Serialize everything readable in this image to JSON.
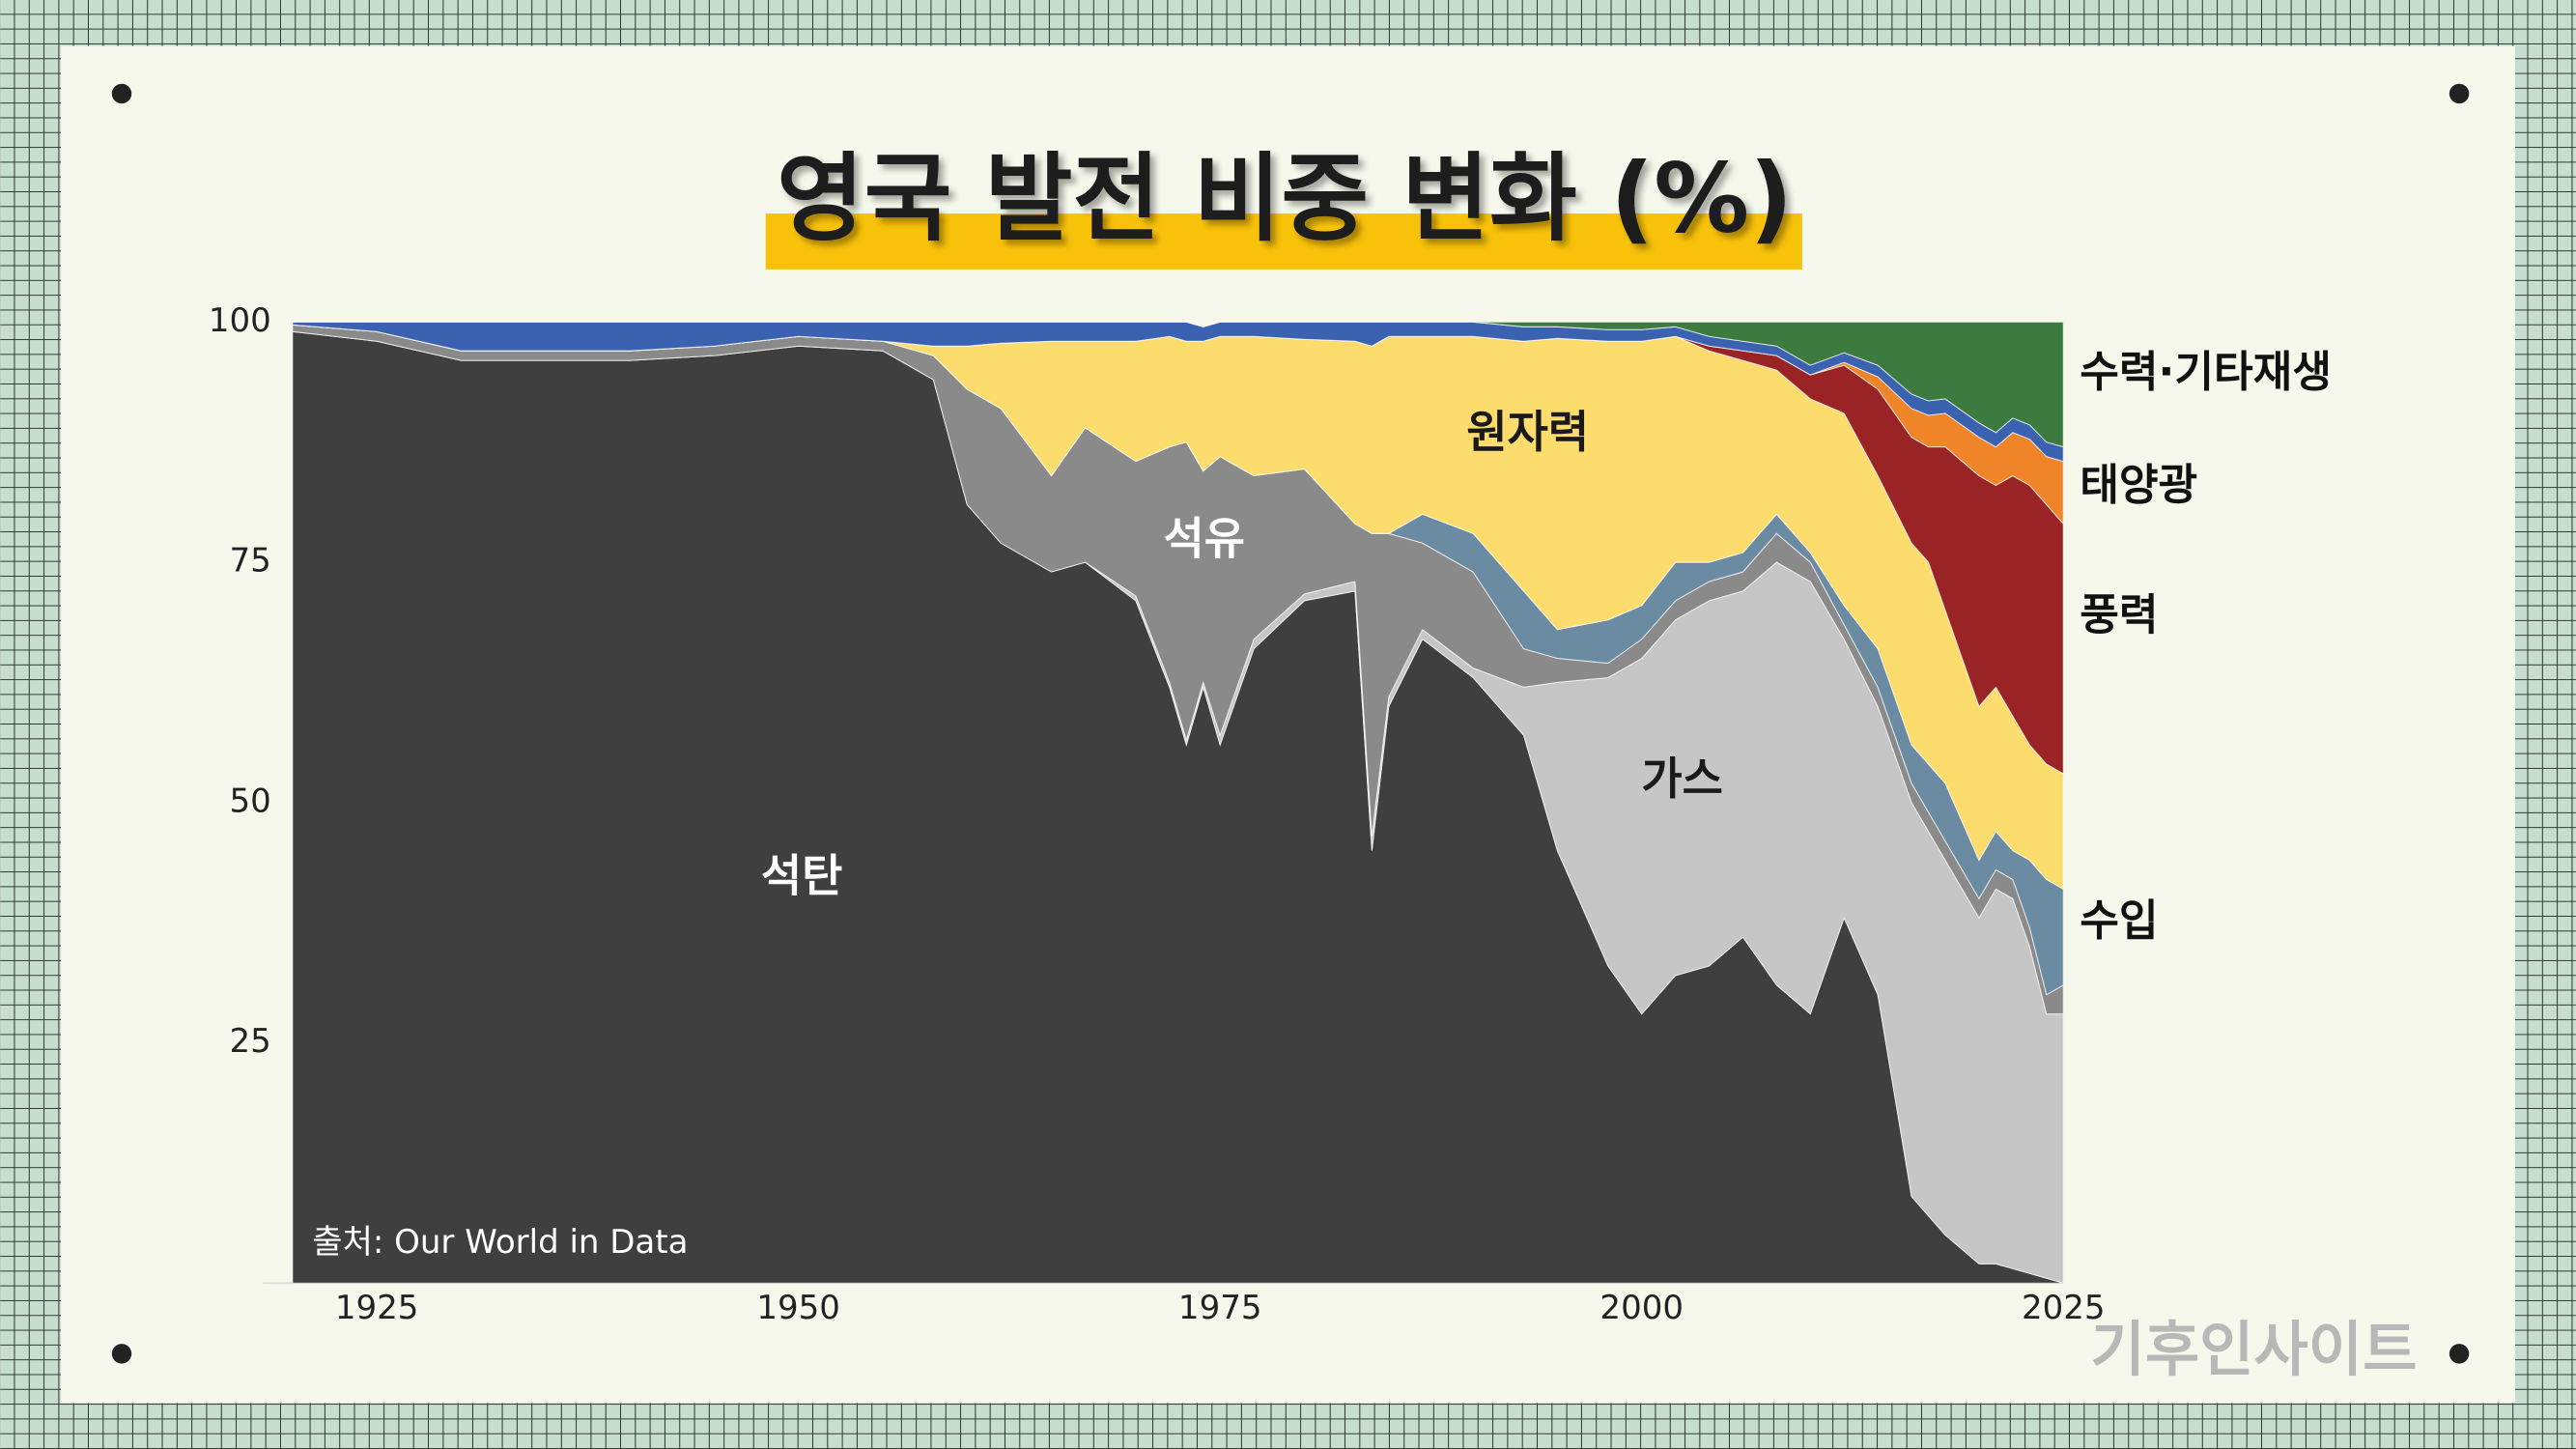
{
  "chart_data": {
    "type": "stacked_area",
    "title": "영국 발전 비중 변화 (%)",
    "source": "출처: Our World in Data",
    "watermark": "기후인사이트",
    "x": [
      1920,
      1925,
      1930,
      1935,
      1940,
      1945,
      1950,
      1955,
      1958,
      1960,
      1962,
      1965,
      1967,
      1970,
      1972,
      1973,
      1974,
      1975,
      1977,
      1980,
      1983,
      1984,
      1985,
      1987,
      1990,
      1993,
      1995,
      1998,
      2000,
      2002,
      2004,
      2006,
      2008,
      2010,
      2012,
      2014,
      2016,
      2017,
      2018,
      2020,
      2021,
      2022,
      2023,
      2024,
      2025
    ],
    "series": [
      {
        "name": "석탄",
        "color": "#3f3f3f",
        "values": [
          99,
          98,
          96,
          96,
          96,
          96.5,
          97.5,
          97,
          94,
          81,
          77,
          74,
          75,
          71,
          62,
          56,
          62,
          56,
          66,
          71,
          72,
          45,
          60,
          67,
          63,
          57,
          45,
          33,
          28,
          32,
          33,
          36,
          31,
          28,
          38,
          30,
          9,
          7,
          5,
          2,
          2,
          1.5,
          1,
          0.5,
          0
        ]
      },
      {
        "name": "가스",
        "color": "#c6c6c6",
        "values": [
          0,
          0,
          0,
          0,
          0,
          0,
          0,
          0,
          0,
          0,
          0,
          0,
          0,
          0.5,
          0.5,
          0.5,
          0.5,
          1,
          1,
          0.7,
          1,
          1.5,
          1,
          1,
          1,
          5,
          17.5,
          30,
          37,
          37,
          38,
          36,
          44,
          45,
          29,
          30,
          41,
          40,
          39,
          36,
          39,
          38.5,
          34,
          27.5,
          28
        ]
      },
      {
        "name": "석유",
        "color": "#8a8a8a",
        "values": [
          0.7,
          1,
          1,
          1,
          1,
          1,
          1,
          1,
          2.5,
          12,
          14,
          10,
          14,
          14,
          24.5,
          31,
          22,
          29,
          17,
          13,
          6,
          31.5,
          17,
          9,
          10,
          4,
          2.5,
          1.5,
          2,
          2,
          2,
          2,
          3,
          2,
          1.5,
          2,
          2,
          2,
          2,
          2,
          2,
          2,
          2,
          2,
          3
        ]
      },
      {
        "name": "수입",
        "color": "#6a8ba2",
        "values": [
          0,
          0,
          0,
          0,
          0,
          0,
          0,
          0,
          0,
          0,
          0,
          0,
          0,
          0,
          0,
          0,
          0,
          0,
          0,
          0,
          0,
          0,
          0,
          3,
          4,
          6,
          3,
          4.5,
          3.5,
          4,
          2,
          2,
          2,
          1,
          2,
          4,
          4,
          5,
          6,
          4,
          4,
          3,
          7,
          12,
          10
        ]
      },
      {
        "name": "원자력",
        "color": "#fddc6e",
        "values": [
          0,
          0,
          0,
          0,
          0,
          0,
          0,
          0,
          1,
          4.5,
          6.8,
          14,
          9,
          12.5,
          11.5,
          10.5,
          13.5,
          12.5,
          14.5,
          13.5,
          19,
          19.5,
          20.5,
          18.5,
          20.5,
          26,
          30.3,
          29,
          27.5,
          23.5,
          22,
          20,
          15,
          16,
          20,
          18,
          21,
          21,
          18,
          16,
          15,
          14,
          12,
          12,
          12
        ]
      },
      {
        "name": "풍력",
        "color": "#9a2325",
        "values": [
          0,
          0,
          0,
          0,
          0,
          0,
          0,
          0,
          0,
          0,
          0,
          0,
          0,
          0,
          0,
          0,
          0,
          0,
          0,
          0,
          0,
          0,
          0,
          0,
          0,
          0,
          0,
          0,
          0,
          0,
          0.5,
          1,
          1.5,
          2.5,
          5,
          9,
          11,
          12,
          17,
          24,
          21,
          25,
          27,
          27,
          26
        ]
      },
      {
        "name": "태양광",
        "color": "#ef8428",
        "values": [
          0,
          0,
          0,
          0,
          0,
          0,
          0,
          0,
          0,
          0,
          0,
          0,
          0,
          0,
          0,
          0,
          0,
          0,
          0,
          0,
          0,
          0,
          0,
          0,
          0,
          0,
          0,
          0,
          0,
          0,
          0,
          0,
          0,
          0,
          0.3,
          1.3,
          3,
          3.3,
          3.5,
          4,
          4,
          4.5,
          4.8,
          5,
          6.5
        ]
      },
      {
        "color": "#3a62b0",
        "values": [
          0.3,
          1,
          3,
          3,
          3,
          2.5,
          1.5,
          2,
          2.5,
          2.5,
          2.2,
          2,
          2,
          2,
          1.5,
          2,
          1.5,
          1.5,
          1.5,
          1.8,
          2,
          2.5,
          1.5,
          1.5,
          1.5,
          1.5,
          1.2,
          1.2,
          1.2,
          1,
          1,
          1,
          1,
          1,
          1,
          1.2,
          1.5,
          1.5,
          1.5,
          1.5,
          1.5,
          1.5,
          1.5,
          1.5,
          1.5
        ]
      },
      {
        "name": "수력·기타재생",
        "color": "#3d7a3f",
        "values": [
          0,
          0,
          0,
          0,
          0,
          0,
          0,
          0,
          0,
          0,
          0,
          0,
          0,
          0,
          0,
          0,
          0,
          0,
          0,
          0,
          0,
          0,
          0,
          0,
          0,
          0.5,
          0.5,
          0.8,
          0.8,
          0.5,
          1.5,
          2,
          2.5,
          4.5,
          3.2,
          4.5,
          7.5,
          8.2,
          8,
          10.5,
          11.5,
          10,
          10.7,
          12.5,
          13
        ]
      }
    ],
    "xlim": [
      1920,
      2025
    ],
    "xticks": [
      1925,
      1950,
      1975,
      2000,
      2025
    ],
    "ylim": [
      0,
      100
    ],
    "yticks": [
      25,
      50,
      75,
      100
    ]
  }
}
